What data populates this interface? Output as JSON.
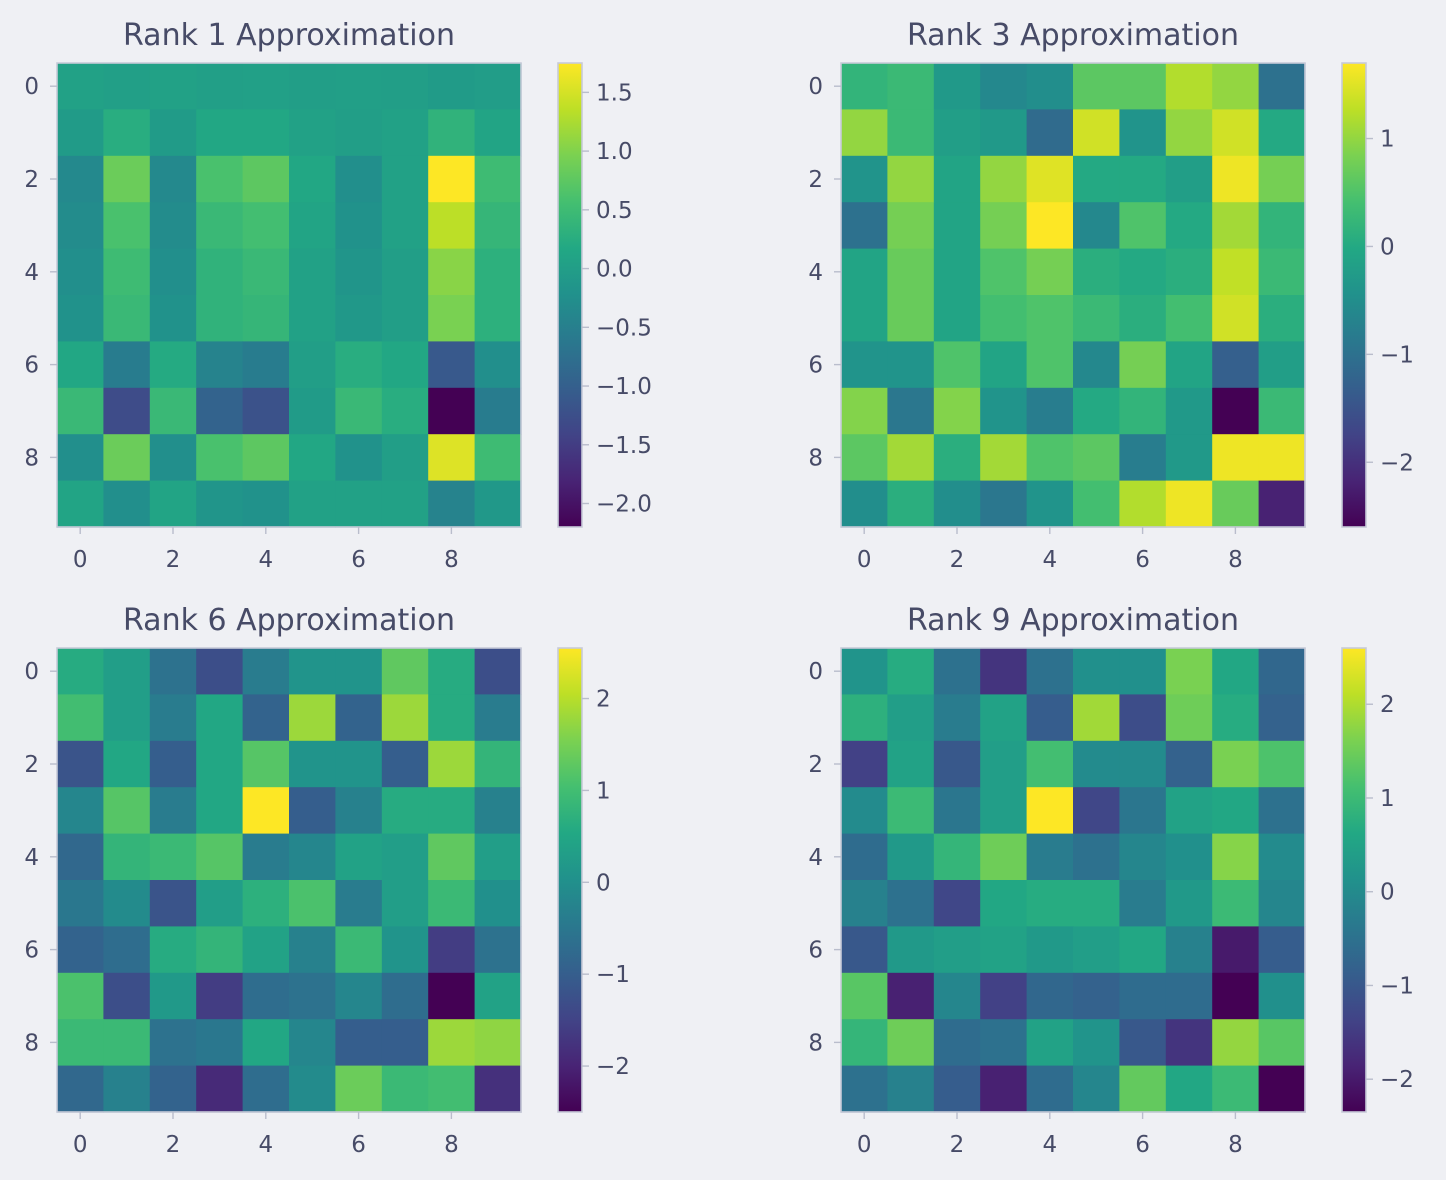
{
  "chart_data": [
    {
      "type": "heatmap",
      "title": "Rank 1 Approximation",
      "colormap": "viridis",
      "x_ticks": [
        "0",
        "2",
        "4",
        "6",
        "8"
      ],
      "y_ticks": [
        "0",
        "2",
        "4",
        "6",
        "8"
      ],
      "vmin": -2.2,
      "vmax": 1.75,
      "colorbar_ticks": [
        1.5,
        1.0,
        0.5,
        0.0,
        -0.5,
        -1.0,
        -1.5,
        -2.0
      ],
      "colorbar_labels": [
        "1.5",
        "1.0",
        "0.5",
        "0.0",
        "−0.5",
        "−1.0",
        "−1.5",
        "−2.0"
      ],
      "matrix": [
        [
          0.05,
          0.02,
          0.05,
          0.02,
          0.03,
          0.0,
          0.02,
          0.0,
          -0.05,
          -0.02
        ],
        [
          -0.05,
          0.25,
          -0.05,
          0.15,
          0.15,
          0.05,
          0.0,
          0.05,
          0.35,
          0.1
        ],
        [
          -0.35,
          0.85,
          -0.35,
          0.6,
          0.75,
          0.15,
          -0.25,
          0.05,
          1.75,
          0.5
        ],
        [
          -0.3,
          0.6,
          -0.3,
          0.45,
          0.55,
          0.1,
          -0.2,
          0.05,
          1.35,
          0.4
        ],
        [
          -0.25,
          0.5,
          -0.25,
          0.35,
          0.45,
          0.05,
          -0.15,
          0.0,
          1.05,
          0.3
        ],
        [
          -0.2,
          0.45,
          -0.2,
          0.35,
          0.4,
          0.05,
          -0.1,
          0.0,
          0.95,
          0.3
        ],
        [
          0.15,
          -0.55,
          0.2,
          -0.45,
          -0.55,
          0.0,
          0.25,
          0.15,
          -1.1,
          -0.25
        ],
        [
          0.45,
          -1.3,
          0.45,
          -0.95,
          -1.2,
          -0.05,
          0.45,
          0.25,
          -2.2,
          -0.55
        ],
        [
          -0.25,
          0.85,
          -0.25,
          0.6,
          0.75,
          0.15,
          -0.2,
          0.0,
          1.55,
          0.5
        ],
        [
          0.1,
          -0.25,
          0.1,
          -0.15,
          -0.2,
          0.05,
          0.05,
          0.05,
          -0.45,
          -0.1
        ]
      ]
    },
    {
      "type": "heatmap",
      "title": "Rank 3 Approximation",
      "colormap": "viridis",
      "x_ticks": [
        "0",
        "2",
        "4",
        "6",
        "8"
      ],
      "y_ticks": [
        "0",
        "2",
        "4",
        "6",
        "8"
      ],
      "vmin": -2.6,
      "vmax": 1.7,
      "colorbar_ticks": [
        1,
        0,
        -1,
        -2
      ],
      "colorbar_labels": [
        "1",
        "0",
        "−1",
        "−2"
      ],
      "matrix": [
        [
          0.2,
          0.3,
          -0.3,
          -0.6,
          -0.5,
          0.6,
          0.6,
          1.2,
          1.0,
          -1.0
        ],
        [
          1.0,
          0.3,
          -0.2,
          -0.3,
          -1.1,
          1.4,
          -0.4,
          1.0,
          1.4,
          0.0
        ],
        [
          -0.4,
          1.0,
          -0.1,
          1.0,
          1.5,
          0.0,
          0.0,
          -0.2,
          1.6,
          0.8
        ],
        [
          -1.0,
          0.8,
          -0.1,
          0.8,
          1.7,
          -0.6,
          0.5,
          0.0,
          1.1,
          0.2
        ],
        [
          -0.1,
          0.7,
          -0.1,
          0.5,
          0.8,
          0.1,
          0.0,
          0.1,
          1.3,
          0.3
        ],
        [
          -0.1,
          0.7,
          -0.1,
          0.4,
          0.5,
          0.3,
          0.1,
          0.4,
          1.4,
          0.1
        ],
        [
          -0.4,
          -0.4,
          0.5,
          -0.1,
          0.5,
          -0.6,
          0.8,
          -0.1,
          -1.3,
          -0.2
        ],
        [
          0.9,
          -0.9,
          0.9,
          -0.4,
          -0.8,
          0.0,
          0.2,
          -0.3,
          -2.6,
          0.3
        ],
        [
          0.6,
          1.1,
          0.1,
          1.1,
          0.5,
          0.6,
          -0.8,
          -0.3,
          1.6,
          1.6
        ],
        [
          -0.5,
          0.1,
          -0.5,
          -0.9,
          -0.4,
          0.4,
          1.2,
          1.6,
          0.7,
          -2.2
        ]
      ]
    },
    {
      "type": "heatmap",
      "title": "Rank 6 Approximation",
      "colormap": "viridis",
      "x_ticks": [
        "0",
        "2",
        "4",
        "6",
        "8"
      ],
      "y_ticks": [
        "0",
        "2",
        "4",
        "6",
        "8"
      ],
      "vmin": -2.5,
      "vmax": 2.55,
      "colorbar_ticks": [
        2,
        1,
        0,
        -1,
        -2
      ],
      "colorbar_labels": [
        "2",
        "1",
        "0",
        "−1",
        "−2"
      ],
      "matrix": [
        [
          0.6,
          0.3,
          -0.6,
          -1.3,
          -0.4,
          0.1,
          0.1,
          1.3,
          0.6,
          -1.3
        ],
        [
          1.0,
          0.3,
          -0.4,
          0.5,
          -0.9,
          1.8,
          -0.9,
          1.8,
          0.6,
          -0.4
        ],
        [
          -1.2,
          0.5,
          -1.0,
          0.5,
          1.2,
          0.1,
          0.1,
          -1.0,
          1.8,
          0.8
        ],
        [
          -0.2,
          1.2,
          -0.4,
          0.5,
          2.55,
          -1.0,
          -0.3,
          0.6,
          0.6,
          -0.3
        ],
        [
          -0.8,
          0.8,
          0.9,
          1.2,
          -0.4,
          -0.2,
          0.4,
          0.3,
          1.3,
          0.3
        ],
        [
          -0.5,
          -0.1,
          -1.2,
          0.3,
          0.7,
          1.1,
          -0.4,
          0.3,
          0.9,
          0.0
        ],
        [
          -0.9,
          -0.7,
          0.6,
          0.8,
          0.4,
          -0.3,
          0.9,
          0.1,
          -1.6,
          -0.6
        ],
        [
          1.1,
          -1.3,
          0.2,
          -1.6,
          -0.7,
          -0.6,
          -0.2,
          -0.7,
          -2.5,
          0.4
        ],
        [
          0.9,
          0.9,
          -0.6,
          -0.5,
          0.5,
          -0.2,
          -1.0,
          -1.0,
          1.8,
          1.7
        ],
        [
          -0.8,
          -0.3,
          -0.9,
          -1.9,
          -0.7,
          -0.1,
          1.4,
          0.9,
          1.0,
          -1.8
        ]
      ]
    },
    {
      "type": "heatmap",
      "title": "Rank 9 Approximation",
      "colormap": "viridis",
      "x_ticks": [
        "0",
        "2",
        "4",
        "6",
        "8"
      ],
      "y_ticks": [
        "0",
        "2",
        "4",
        "6",
        "8"
      ],
      "vmin": -2.35,
      "vmax": 2.6,
      "colorbar_ticks": [
        2,
        1,
        0,
        -1,
        -2
      ],
      "colorbar_labels": [
        "2",
        "1",
        "0",
        "−1",
        "−2"
      ],
      "matrix": [
        [
          0.2,
          0.7,
          -0.5,
          -1.6,
          -0.5,
          0.1,
          0.1,
          1.6,
          0.6,
          -0.7
        ],
        [
          0.8,
          0.4,
          -0.3,
          0.5,
          -0.9,
          1.9,
          -1.2,
          1.5,
          0.7,
          -0.8
        ],
        [
          -1.4,
          0.5,
          -1.0,
          0.4,
          1.1,
          0.0,
          0.0,
          -0.8,
          1.6,
          1.2
        ],
        [
          0.0,
          1.0,
          -0.4,
          0.4,
          2.6,
          -1.3,
          -0.4,
          0.5,
          0.6,
          -0.5
        ],
        [
          -0.6,
          0.3,
          0.9,
          1.5,
          -0.3,
          -0.5,
          -0.1,
          0.1,
          1.7,
          0.0
        ],
        [
          -0.2,
          -0.5,
          -1.3,
          0.6,
          0.7,
          0.7,
          -0.3,
          0.3,
          1.0,
          -0.1
        ],
        [
          -1.0,
          0.3,
          0.4,
          0.5,
          0.3,
          0.4,
          0.6,
          -0.2,
          -2.0,
          -0.9
        ],
        [
          1.3,
          -1.9,
          -0.1,
          -1.4,
          -0.7,
          -0.8,
          -0.6,
          -0.6,
          -2.35,
          0.1
        ],
        [
          0.9,
          1.5,
          -0.6,
          -0.5,
          0.5,
          0.2,
          -1.0,
          -1.6,
          1.8,
          1.3
        ],
        [
          -0.5,
          -0.2,
          -0.9,
          -1.9,
          -0.6,
          -0.1,
          1.4,
          0.6,
          1.0,
          -2.35
        ]
      ]
    }
  ]
}
